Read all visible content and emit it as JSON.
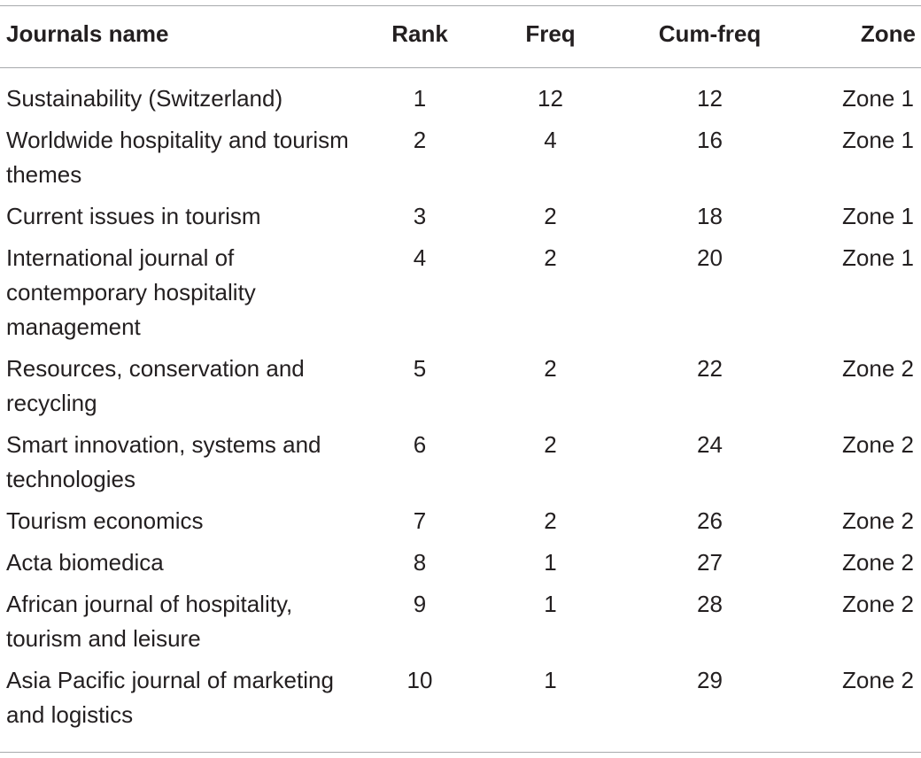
{
  "table": {
    "headers": {
      "name": "Journals name",
      "rank": "Rank",
      "freq": "Freq",
      "cum": "Cum-freq",
      "zone": "Zone"
    },
    "rows": [
      {
        "name": "Sustainability (Switzerland)",
        "rank": "1",
        "freq": "12",
        "cum": "12",
        "zone": "Zone 1"
      },
      {
        "name": "Worldwide hospitality and tourism themes",
        "rank": "2",
        "freq": "4",
        "cum": "16",
        "zone": "Zone 1"
      },
      {
        "name": "Current issues in tourism",
        "rank": "3",
        "freq": "2",
        "cum": "18",
        "zone": "Zone 1"
      },
      {
        "name": "International journal of contemporary hospitality management",
        "rank": "4",
        "freq": "2",
        "cum": "20",
        "zone": "Zone 1"
      },
      {
        "name": "Resources, conservation and recycling",
        "rank": "5",
        "freq": "2",
        "cum": "22",
        "zone": "Zone 2"
      },
      {
        "name": "Smart innovation, systems and technologies",
        "rank": "6",
        "freq": "2",
        "cum": "24",
        "zone": "Zone 2"
      },
      {
        "name": "Tourism economics",
        "rank": "7",
        "freq": "2",
        "cum": "26",
        "zone": "Zone 2"
      },
      {
        "name": "Acta biomedica",
        "rank": "8",
        "freq": "1",
        "cum": "27",
        "zone": "Zone 2"
      },
      {
        "name": "African journal of hospitality, tourism and leisure",
        "rank": "9",
        "freq": "1",
        "cum": "28",
        "zone": "Zone 2"
      },
      {
        "name": "Asia Pacific journal of marketing and logistics",
        "rank": "10",
        "freq": "1",
        "cum": "29",
        "zone": "Zone 2"
      }
    ]
  }
}
